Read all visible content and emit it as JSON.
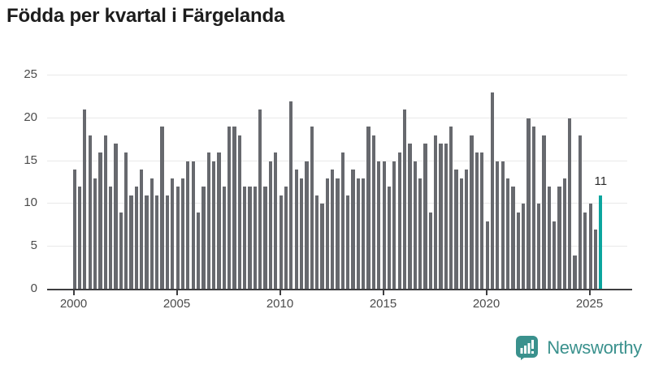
{
  "header": {
    "title": "Födda per kvartal i Färgelanda"
  },
  "chart_data": {
    "type": "bar",
    "title": "Födda per kvartal i Färgelanda",
    "x_start": "2000 Q1",
    "x_end": "2025 Q3",
    "series_by_year": [
      {
        "year": 2000,
        "values": [
          14,
          12,
          21,
          18
        ]
      },
      {
        "year": 2001,
        "values": [
          13,
          16,
          18,
          12
        ]
      },
      {
        "year": 2002,
        "values": [
          17,
          9,
          16,
          11
        ]
      },
      {
        "year": 2003,
        "values": [
          12,
          14,
          11,
          13
        ]
      },
      {
        "year": 2004,
        "values": [
          11,
          19,
          11,
          13
        ]
      },
      {
        "year": 2005,
        "values": [
          12,
          13,
          15,
          15
        ]
      },
      {
        "year": 2006,
        "values": [
          9,
          12,
          16,
          15
        ]
      },
      {
        "year": 2007,
        "values": [
          16,
          12,
          19,
          19
        ]
      },
      {
        "year": 2008,
        "values": [
          18,
          12,
          12,
          12
        ]
      },
      {
        "year": 2009,
        "values": [
          21,
          12,
          15,
          16
        ]
      },
      {
        "year": 2010,
        "values": [
          11,
          12,
          22,
          14
        ]
      },
      {
        "year": 2011,
        "values": [
          13,
          15,
          19,
          11
        ]
      },
      {
        "year": 2012,
        "values": [
          10,
          13,
          14,
          13
        ]
      },
      {
        "year": 2013,
        "values": [
          16,
          11,
          14,
          13
        ]
      },
      {
        "year": 2014,
        "values": [
          13,
          19,
          18,
          15
        ]
      },
      {
        "year": 2015,
        "values": [
          15,
          12,
          15,
          16
        ]
      },
      {
        "year": 2016,
        "values": [
          21,
          17,
          15,
          13
        ]
      },
      {
        "year": 2017,
        "values": [
          17,
          9,
          18,
          17
        ]
      },
      {
        "year": 2018,
        "values": [
          17,
          19,
          14,
          13
        ]
      },
      {
        "year": 2019,
        "values": [
          14,
          18,
          16,
          16
        ]
      },
      {
        "year": 2020,
        "values": [
          8,
          23,
          15,
          15
        ]
      },
      {
        "year": 2021,
        "values": [
          13,
          12,
          9,
          10
        ]
      },
      {
        "year": 2022,
        "values": [
          20,
          19,
          10,
          18
        ]
      },
      {
        "year": 2023,
        "values": [
          12,
          8,
          12,
          13
        ]
      },
      {
        "year": 2024,
        "values": [
          20,
          4,
          18,
          9
        ]
      },
      {
        "year": 2025,
        "values": [
          10,
          7,
          11
        ]
      }
    ],
    "highlight": {
      "period": "2025 Q3",
      "value": 11,
      "label": "11",
      "color": "#0ba59e"
    },
    "bar_color": "#67696e",
    "xticks": [
      "2000",
      "2005",
      "2010",
      "2015",
      "2020",
      "2025"
    ],
    "yticks": [
      0,
      5,
      10,
      15,
      20,
      25
    ],
    "ylim": [
      0,
      25
    ],
    "grid": "horizontal",
    "legend": "none"
  },
  "footer": {
    "brand": "Newsworthy",
    "logo_icon": "speech-bubble-bar-chart-icon",
    "logo_color": "#3a918d"
  },
  "colors": {
    "background": "#ffffff",
    "title": "#1d1d1d",
    "bar": "#67696e",
    "highlight": "#0ba59e",
    "gridline": "#e9e9e9",
    "axis": "#3e3e40",
    "axis_label": "#4b4b4b",
    "value_label": "#2b2b2b"
  }
}
